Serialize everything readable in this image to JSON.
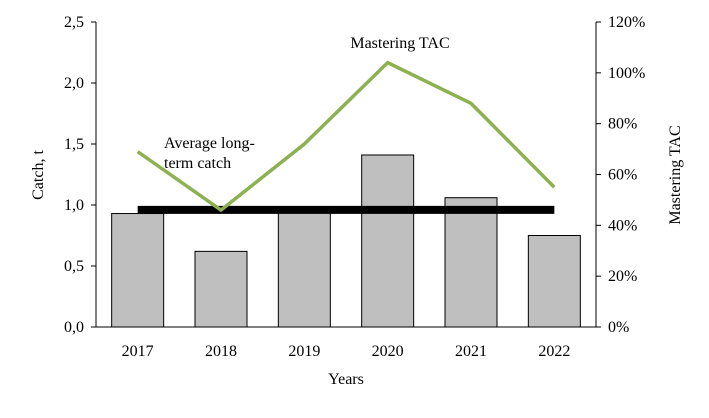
{
  "chart_data": {
    "type": "bar",
    "categories": [
      "2017",
      "2018",
      "2019",
      "2020",
      "2021",
      "2022"
    ],
    "series": [
      {
        "name": "Catch, t",
        "type": "bar",
        "axis": "left",
        "values": [
          0.93,
          0.62,
          0.95,
          1.41,
          1.06,
          0.75
        ],
        "color": "#bfbfbf"
      },
      {
        "name": "Mastering TAC",
        "type": "line",
        "axis": "right",
        "values": [
          69,
          46,
          72,
          104,
          88,
          55
        ],
        "color": "#8db150"
      },
      {
        "name": "Average long-term catch",
        "type": "line",
        "axis": "left",
        "values": [
          0.96,
          0.96,
          0.96,
          0.96,
          0.96,
          0.96
        ],
        "color": "#000000"
      }
    ],
    "xlabel": "Years",
    "ylabel": "Catch, t",
    "y2label": "Mastering TAC",
    "ylim": [
      0,
      2.5
    ],
    "y2lim": [
      0,
      120
    ],
    "yticks": [
      "0,0",
      "0,5",
      "1,0",
      "1,5",
      "2,0",
      "2,5"
    ],
    "y2ticks": [
      "0%",
      "20%",
      "40%",
      "60%",
      "80%",
      "100%",
      "120%"
    ],
    "annotations": {
      "tac": "Mastering  TAC",
      "avg_line1": "Average long-",
      "avg_line2": "term catch"
    },
    "grid": false
  }
}
